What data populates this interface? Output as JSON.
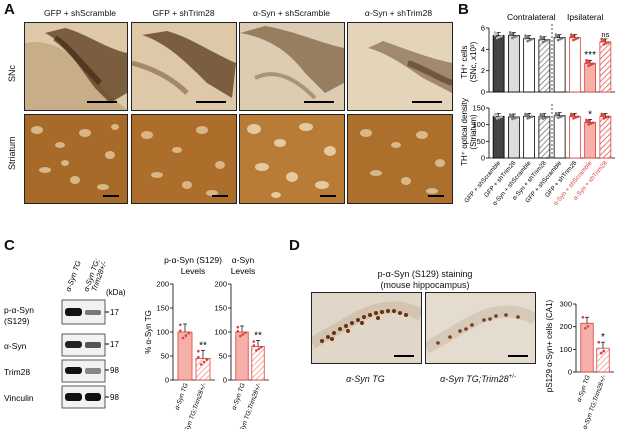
{
  "panelA": {
    "letter": "A",
    "conditions": [
      "GFP + shScramble",
      "GFP + shTrim28",
      "α-Syn + shScramble",
      "α-Syn + shTrim28"
    ],
    "rows": [
      "SNc",
      "Striatum"
    ]
  },
  "panelB": {
    "letter": "B",
    "contralateral": "Contralateral",
    "ipsilateral": "Ipsilateral",
    "chart_data": [
      {
        "type": "bar",
        "ylabel_line1": "TH⁺ cells",
        "ylabel_line2": "(SNc, x10³)",
        "ylim": [
          0,
          6
        ],
        "yticks": [
          "0",
          "2",
          "4",
          "6"
        ],
        "categories": [
          "GFP + shScramble",
          "GFP + shTrim28",
          "α-Syn + shScramble",
          "α-Syn + shTrim28",
          "GFP + shScramble",
          "GFP + shTrim28",
          "α-Syn + shScramble",
          "α-Syn + shTrim28"
        ],
        "values": [
          5.3,
          5.3,
          5.0,
          4.9,
          5.1,
          5.1,
          2.7,
          4.7
        ],
        "annotations": [
          "",
          "",
          "",
          "",
          "",
          "",
          "***",
          "ns"
        ]
      },
      {
        "type": "bar",
        "ylabel_line1": "TH⁺ optical density",
        "ylabel_line2": "(Striatum)",
        "ylim": [
          0,
          150
        ],
        "yticks": [
          "0",
          "50",
          "100",
          "150"
        ],
        "values": [
          125,
          123,
          125,
          124,
          127,
          125,
          107,
          125
        ],
        "annotations": [
          "",
          "",
          "",
          "",
          "",
          "",
          "*",
          ""
        ]
      }
    ]
  },
  "panelC": {
    "letter": "C",
    "lanes": [
      "α-Syn TG",
      "α-Syn TG;",
      "Trim28+/-"
    ],
    "kda": "(kDa)",
    "blots": [
      {
        "label": "p-α-Syn",
        "label2": "(S129)",
        "marker": "17"
      },
      {
        "label": "α-Syn",
        "label2": "",
        "marker": "17"
      },
      {
        "label": "Trim28",
        "label2": "",
        "marker": "98"
      },
      {
        "label": "Vinculin",
        "label2": "",
        "marker": "98"
      }
    ],
    "chart_data": [
      {
        "type": "bar",
        "title_line1": "p-α-Syn (S129)",
        "title_line2": "Levels",
        "ylabel": "% α-Syn TG",
        "ylim": [
          0,
          200
        ],
        "yticks": [
          "0",
          "50",
          "100",
          "150",
          "200"
        ],
        "categories": [
          "α-Syn TG",
          "α-Syn TG;Trim28+/-"
        ],
        "values": [
          100,
          45
        ],
        "annotations": [
          "",
          "**"
        ]
      },
      {
        "type": "bar",
        "title_line1": "α-Syn",
        "title_line2": "Levels",
        "ylim": [
          0,
          200
        ],
        "yticks": [
          "0",
          "50",
          "100",
          "150",
          "200"
        ],
        "categories": [
          "α-Syn TG",
          "α-Syn TG;Trim28+/-"
        ],
        "values": [
          100,
          70
        ],
        "annotations": [
          "",
          "**"
        ]
      }
    ]
  },
  "panelD": {
    "letter": "D",
    "title_line1": "p-α-Syn (S129) staining",
    "title_line2": "(mouse hippocampus)",
    "caption_left": "α-Syn TG",
    "caption_right": "α-Syn TG;Trim28",
    "caption_right_sup": "+/-",
    "chart_data": {
      "type": "bar",
      "ylabel": "pS129 α-Syn+ cells (CA1)",
      "ylim": [
        0,
        300
      ],
      "yticks": [
        "0",
        "100",
        "200",
        "300"
      ],
      "categories": [
        "α-Syn TG",
        "α-Syn TG;Trim28+/-"
      ],
      "values": [
        215,
        105
      ],
      "annotations": [
        "",
        "*"
      ]
    }
  }
}
